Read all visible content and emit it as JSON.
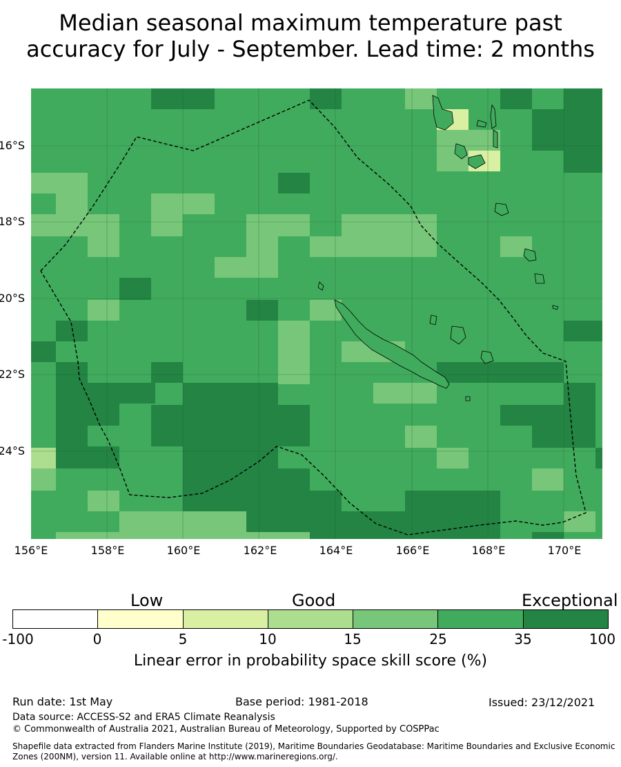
{
  "title_line1": "Median seasonal maximum temperature past",
  "title_line2": "accuracy for July - September. Lead time: 2 months",
  "map": {
    "lat_range_deg": [
      -26.3,
      -14.5
    ],
    "lon_range_deg": [
      156,
      171
    ],
    "base_color": "#41ab5d",
    "lat_ticks": [
      "16°S",
      "18°S",
      "20°S",
      "22°S",
      "24°S"
    ],
    "lon_ticks": [
      "156°E",
      "158°E",
      "160°E",
      "162°E",
      "164°E",
      "166°E",
      "168°E",
      "170°E"
    ],
    "gridlines": true,
    "boundary_style": "dashed black",
    "coastline_regions": [
      "New Caledonia",
      "Vanuatu",
      "Loyalty Islands"
    ]
  },
  "colorbar": {
    "header_low": "Low",
    "header_good": "Good",
    "header_exceptional": "Exceptional",
    "tick_labels": [
      "-100",
      "0",
      "5",
      "10",
      "15",
      "25",
      "35",
      "100"
    ],
    "colors": [
      "#ffffff",
      "#ffffcc",
      "#d9f0a3",
      "#addd8e",
      "#78c679",
      "#41ab5d",
      "#238443"
    ],
    "label": "Linear error in probability space skill score (%)"
  },
  "footer": {
    "run_date": "Run date: 1st May",
    "base_period": "Base period: 1981-2018",
    "issued": "Issued: 23/12/2021",
    "data_source": "Data source: ACCESS-S2 and ERA5 Climate Reanalysis",
    "copyright": "© Commonwealth of Australia 2021, Australian Bureau of Meteorology, Supported by COSPPac",
    "shapefile": "Shapefile data extracted from Flanders Marine Institute (2019), Maritime Boundaries Geodatabase: Maritime Boundaries and Exclusive Economic Zones (200NM), version 11. Available online at http://www.marineregions.org/."
  }
}
